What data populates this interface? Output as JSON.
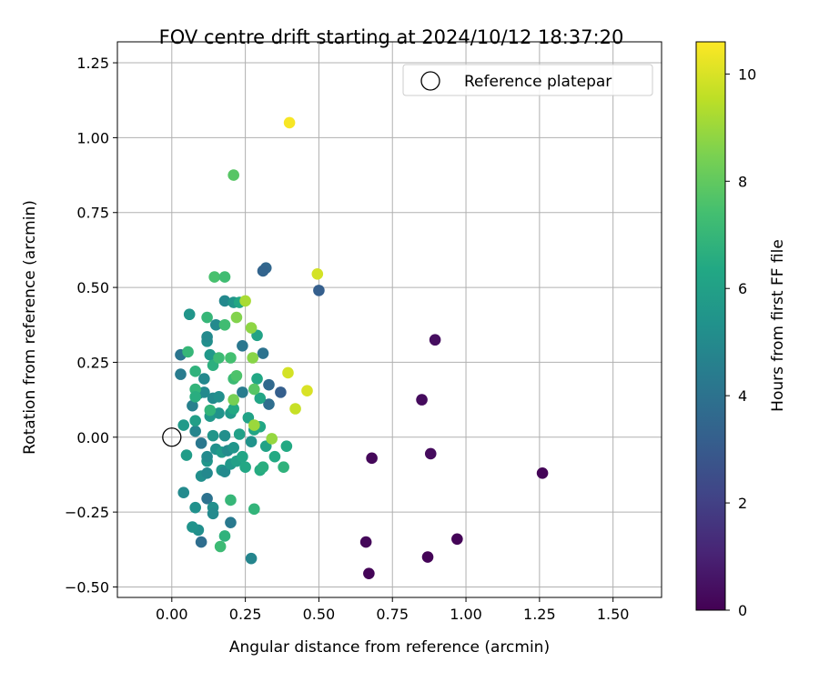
{
  "chart_data": {
    "type": "scatter",
    "title": "FOV centre drift starting at 2024/10/12 18:37:20",
    "xlabel": "Angular distance from reference (arcmin)",
    "ylabel": "Rotation from reference (arcmin)",
    "xlim": [
      -0.185,
      1.665
    ],
    "ylim": [
      -0.535,
      1.32
    ],
    "x_ticks": [
      0.0,
      0.25,
      0.5,
      0.75,
      1.0,
      1.25,
      1.5
    ],
    "x_tick_labels": [
      "0.00",
      "0.25",
      "0.50",
      "0.75",
      "1.00",
      "1.25",
      "1.50"
    ],
    "y_ticks": [
      -0.5,
      -0.25,
      0.0,
      0.25,
      0.5,
      0.75,
      1.0,
      1.25
    ],
    "y_tick_labels": [
      "−0.50",
      "−0.25",
      "0.00",
      "0.25",
      "0.50",
      "0.75",
      "1.00",
      "1.25"
    ],
    "grid": true,
    "legend": {
      "position": "top-right",
      "entries": [
        "Reference platepar"
      ]
    },
    "reference_point": {
      "x": 0.0,
      "y": 0.0
    },
    "colorbar": {
      "label": "Hours from first FF file",
      "range": [
        0,
        10.6
      ],
      "ticks": [
        0,
        2,
        4,
        6,
        8,
        10
      ],
      "tick_labels": [
        "0",
        "2",
        "4",
        "6",
        "8",
        "10"
      ],
      "colormap": "viridis"
    },
    "points": [
      {
        "x": 1.26,
        "y": -0.12,
        "t": 0.1
      },
      {
        "x": 0.97,
        "y": -0.34,
        "t": 0.1
      },
      {
        "x": 0.87,
        "y": -0.4,
        "t": 0.1
      },
      {
        "x": 0.67,
        "y": -0.455,
        "t": 0.1
      },
      {
        "x": 0.66,
        "y": -0.35,
        "t": 0.2
      },
      {
        "x": 0.68,
        "y": -0.07,
        "t": 0.2
      },
      {
        "x": 0.88,
        "y": -0.055,
        "t": 0.3
      },
      {
        "x": 0.85,
        "y": 0.125,
        "t": 0.3
      },
      {
        "x": 0.895,
        "y": 0.325,
        "t": 0.4
      },
      {
        "x": 0.5,
        "y": 0.49,
        "t": 3.2
      },
      {
        "x": 0.32,
        "y": 0.565,
        "t": 3.5
      },
      {
        "x": 0.31,
        "y": 0.555,
        "t": 3.4
      },
      {
        "x": 0.37,
        "y": 0.15,
        "t": 3.2
      },
      {
        "x": 0.33,
        "y": 0.175,
        "t": 3.6
      },
      {
        "x": 0.33,
        "y": 0.11,
        "t": 3.8
      },
      {
        "x": 0.31,
        "y": 0.28,
        "t": 4.0
      },
      {
        "x": 0.24,
        "y": 0.305,
        "t": 4.2
      },
      {
        "x": 0.24,
        "y": 0.15,
        "t": 4.4
      },
      {
        "x": 0.03,
        "y": 0.275,
        "t": 4.1
      },
      {
        "x": 0.03,
        "y": 0.21,
        "t": 4.4
      },
      {
        "x": 0.07,
        "y": 0.105,
        "t": 4.6
      },
      {
        "x": 0.08,
        "y": 0.02,
        "t": 4.8
      },
      {
        "x": 0.1,
        "y": -0.02,
        "t": 4.2
      },
      {
        "x": 0.1,
        "y": -0.35,
        "t": 3.8
      },
      {
        "x": 0.12,
        "y": -0.205,
        "t": 4.0
      },
      {
        "x": 0.2,
        "y": -0.285,
        "t": 4.3
      },
      {
        "x": 0.27,
        "y": -0.405,
        "t": 4.8
      },
      {
        "x": 0.09,
        "y": -0.31,
        "t": 5.2
      },
      {
        "x": 0.07,
        "y": -0.3,
        "t": 5.4
      },
      {
        "x": 0.04,
        "y": -0.185,
        "t": 5.0
      },
      {
        "x": 0.08,
        "y": -0.235,
        "t": 5.3
      },
      {
        "x": 0.14,
        "y": -0.235,
        "t": 5.2
      },
      {
        "x": 0.14,
        "y": -0.255,
        "t": 5.0
      },
      {
        "x": 0.1,
        "y": -0.13,
        "t": 5.2
      },
      {
        "x": 0.12,
        "y": -0.12,
        "t": 4.9
      },
      {
        "x": 0.17,
        "y": -0.11,
        "t": 5.6
      },
      {
        "x": 0.18,
        "y": -0.115,
        "t": 5.0
      },
      {
        "x": 0.12,
        "y": -0.08,
        "t": 5.5
      },
      {
        "x": 0.12,
        "y": -0.065,
        "t": 5.0
      },
      {
        "x": 0.05,
        "y": -0.06,
        "t": 5.8
      },
      {
        "x": 0.04,
        "y": 0.04,
        "t": 5.7
      },
      {
        "x": 0.12,
        "y": 0.32,
        "t": 5.2
      },
      {
        "x": 0.12,
        "y": 0.335,
        "t": 5.0
      },
      {
        "x": 0.06,
        "y": 0.41,
        "t": 5.5
      },
      {
        "x": 0.15,
        "y": 0.375,
        "t": 5.0
      },
      {
        "x": 0.18,
        "y": 0.455,
        "t": 4.9
      },
      {
        "x": 0.21,
        "y": 0.45,
        "t": 5.5
      },
      {
        "x": 0.23,
        "y": 0.45,
        "t": 6.3
      },
      {
        "x": 0.13,
        "y": 0.275,
        "t": 5.6
      },
      {
        "x": 0.11,
        "y": 0.195,
        "t": 4.9
      },
      {
        "x": 0.09,
        "y": 0.145,
        "t": 5.2
      },
      {
        "x": 0.11,
        "y": 0.15,
        "t": 5.0
      },
      {
        "x": 0.14,
        "y": 0.13,
        "t": 5.0
      },
      {
        "x": 0.16,
        "y": 0.135,
        "t": 5.2
      },
      {
        "x": 0.08,
        "y": 0.055,
        "t": 5.9
      },
      {
        "x": 0.13,
        "y": 0.07,
        "t": 5.6
      },
      {
        "x": 0.16,
        "y": 0.08,
        "t": 5.4
      },
      {
        "x": 0.14,
        "y": 0.005,
        "t": 5.5
      },
      {
        "x": 0.15,
        "y": -0.04,
        "t": 5.3
      },
      {
        "x": 0.17,
        "y": -0.05,
        "t": 5.7
      },
      {
        "x": 0.19,
        "y": -0.045,
        "t": 5.1
      },
      {
        "x": 0.2,
        "y": -0.09,
        "t": 5.6
      },
      {
        "x": 0.22,
        "y": -0.08,
        "t": 6.0
      },
      {
        "x": 0.21,
        "y": -0.035,
        "t": 5.5
      },
      {
        "x": 0.18,
        "y": 0.005,
        "t": 5.2
      },
      {
        "x": 0.2,
        "y": 0.08,
        "t": 5.7
      },
      {
        "x": 0.21,
        "y": 0.095,
        "t": 6.4
      },
      {
        "x": 0.23,
        "y": 0.01,
        "t": 6.0
      },
      {
        "x": 0.26,
        "y": 0.065,
        "t": 6.1
      },
      {
        "x": 0.27,
        "y": -0.015,
        "t": 5.4
      },
      {
        "x": 0.28,
        "y": 0.025,
        "t": 6.2
      },
      {
        "x": 0.3,
        "y": 0.035,
        "t": 6.3
      },
      {
        "x": 0.3,
        "y": 0.13,
        "t": 6.2
      },
      {
        "x": 0.29,
        "y": 0.195,
        "t": 6.3
      },
      {
        "x": 0.29,
        "y": 0.34,
        "t": 6.1
      },
      {
        "x": 0.25,
        "y": -0.1,
        "t": 6.3
      },
      {
        "x": 0.24,
        "y": -0.065,
        "t": 6.2
      },
      {
        "x": 0.3,
        "y": -0.11,
        "t": 6.5
      },
      {
        "x": 0.31,
        "y": -0.1,
        "t": 6.6
      },
      {
        "x": 0.32,
        "y": -0.03,
        "t": 6.1
      },
      {
        "x": 0.35,
        "y": -0.065,
        "t": 6.4
      },
      {
        "x": 0.39,
        "y": -0.03,
        "t": 6.4
      },
      {
        "x": 0.38,
        "y": -0.1,
        "t": 6.8
      },
      {
        "x": 0.28,
        "y": -0.24,
        "t": 6.9
      },
      {
        "x": 0.2,
        "y": -0.21,
        "t": 7.0
      },
      {
        "x": 0.18,
        "y": -0.33,
        "t": 6.8
      },
      {
        "x": 0.165,
        "y": -0.365,
        "t": 7.2
      },
      {
        "x": 0.055,
        "y": 0.285,
        "t": 7.0
      },
      {
        "x": 0.08,
        "y": 0.22,
        "t": 6.8
      },
      {
        "x": 0.08,
        "y": 0.16,
        "t": 6.9
      },
      {
        "x": 0.08,
        "y": 0.135,
        "t": 6.6
      },
      {
        "x": 0.13,
        "y": 0.09,
        "t": 6.9
      },
      {
        "x": 0.14,
        "y": 0.24,
        "t": 6.7
      },
      {
        "x": 0.16,
        "y": 0.265,
        "t": 7.2
      },
      {
        "x": 0.12,
        "y": 0.4,
        "t": 7.0
      },
      {
        "x": 0.18,
        "y": 0.375,
        "t": 7.3
      },
      {
        "x": 0.145,
        "y": 0.535,
        "t": 7.5
      },
      {
        "x": 0.18,
        "y": 0.535,
        "t": 7.3
      },
      {
        "x": 0.2,
        "y": 0.265,
        "t": 7.4
      },
      {
        "x": 0.21,
        "y": 0.195,
        "t": 7.2
      },
      {
        "x": 0.22,
        "y": 0.205,
        "t": 7.6
      },
      {
        "x": 0.28,
        "y": 0.16,
        "t": 7.8
      },
      {
        "x": 0.21,
        "y": 0.875,
        "t": 7.8
      },
      {
        "x": 0.21,
        "y": 0.125,
        "t": 8.4
      },
      {
        "x": 0.22,
        "y": 0.4,
        "t": 8.6
      },
      {
        "x": 0.27,
        "y": 0.365,
        "t": 8.8
      },
      {
        "x": 0.25,
        "y": 0.455,
        "t": 9.2
      },
      {
        "x": 0.275,
        "y": 0.265,
        "t": 8.7
      },
      {
        "x": 0.28,
        "y": 0.04,
        "t": 9.0
      },
      {
        "x": 0.34,
        "y": -0.005,
        "t": 8.9
      },
      {
        "x": 0.395,
        "y": 0.215,
        "t": 9.9
      },
      {
        "x": 0.42,
        "y": 0.095,
        "t": 9.7
      },
      {
        "x": 0.46,
        "y": 0.155,
        "t": 10.0
      },
      {
        "x": 0.495,
        "y": 0.545,
        "t": 9.9
      },
      {
        "x": 0.4,
        "y": 1.05,
        "t": 10.5
      }
    ]
  }
}
